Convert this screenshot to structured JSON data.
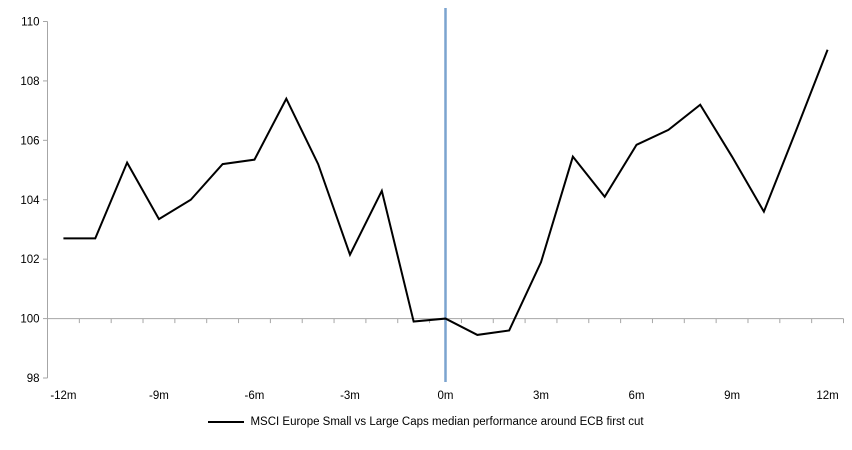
{
  "chart_data": {
    "type": "line",
    "x": [
      -12,
      -11,
      -10,
      -9,
      -8,
      -7,
      -6,
      -5,
      -4,
      -3,
      -2,
      -1,
      0,
      1,
      2,
      3,
      4,
      5,
      6,
      7,
      8,
      9,
      10,
      11,
      12
    ],
    "series": [
      {
        "name": "MSCI Europe Small vs Large Caps median performance around ECB first cut",
        "color": "#000000",
        "values": [
          102.7,
          102.7,
          105.25,
          103.35,
          104.0,
          105.2,
          105.35,
          107.4,
          105.2,
          102.15,
          104.3,
          99.9,
          100.0,
          99.45,
          99.6,
          101.9,
          105.45,
          104.1,
          105.85,
          106.35,
          107.2,
          105.45,
          103.6,
          106.3,
          109.05
        ]
      }
    ],
    "x_tick_labels": [
      "-12m",
      "-9m",
      "-6m",
      "-3m",
      "0m",
      "3m",
      "6m",
      "9m",
      "12m"
    ],
    "x_tick_positions": [
      -12,
      -9,
      -6,
      -3,
      0,
      3,
      6,
      9,
      12
    ],
    "ylim": [
      98,
      110
    ],
    "y_ticks": [
      98,
      100,
      102,
      104,
      106,
      108,
      110
    ],
    "axis_cross_y": 100,
    "event_line_x": 0,
    "event_line_color": "#7BA4CF",
    "axis_color": "#A6A6A6",
    "grid": "off",
    "legend_position": "bottom-center"
  }
}
